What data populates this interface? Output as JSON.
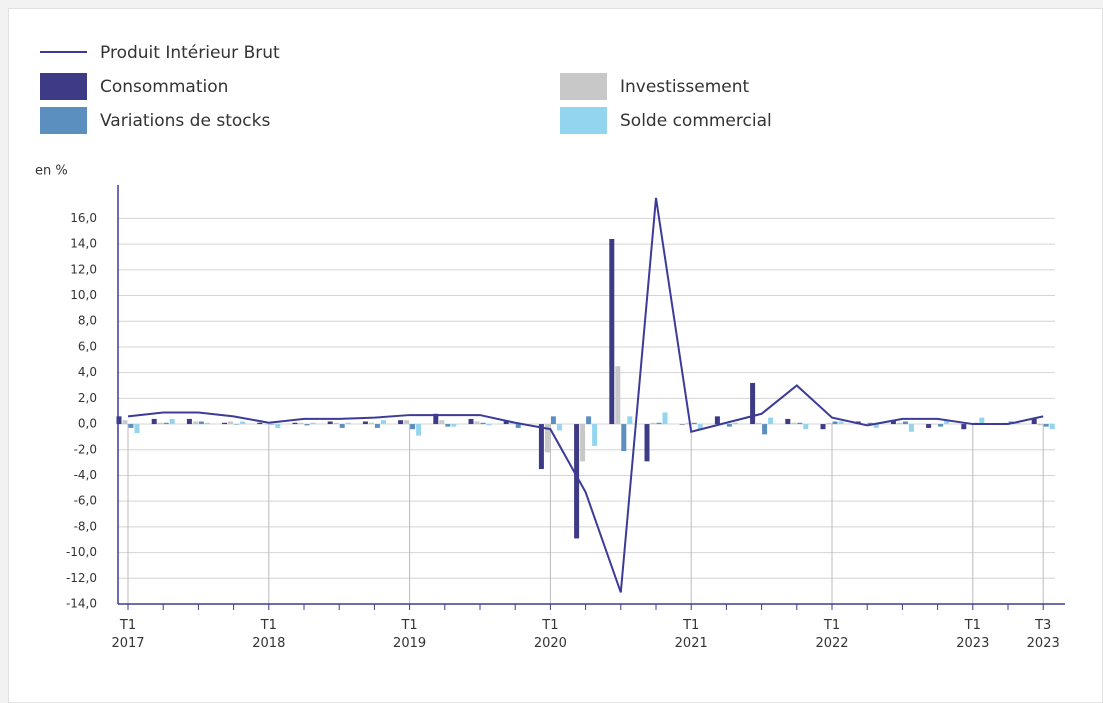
{
  "chart_data": {
    "type": "bar",
    "ylabel": "en %",
    "categories": [
      "T1 2017",
      null,
      null,
      null,
      "T1 2018",
      null,
      null,
      null,
      "T1 2019",
      null,
      null,
      null,
      "T1 2020",
      null,
      null,
      null,
      "T1 2021",
      null,
      null,
      null,
      "T1 2022",
      null,
      null,
      null,
      "T1 2023",
      null,
      "T3 2023"
    ],
    "series": [
      {
        "name": "Produit Intérieur Brut",
        "type": "line",
        "color": "#3c3b98",
        "values": [
          0.6,
          0.9,
          0.9,
          0.6,
          0.1,
          0.4,
          0.4,
          0.5,
          0.7,
          0.7,
          0.7,
          0.1,
          -0.4,
          -5.3,
          -13.1,
          17.6,
          -0.6,
          0.1,
          0.8,
          3.0,
          0.5,
          -0.1,
          0.4,
          0.4,
          0.0,
          0.0,
          0.6
        ]
      },
      {
        "name": "Consommation",
        "type": "bar",
        "color": "#3d3b85",
        "values": [
          0.6,
          0.4,
          0.4,
          0.1,
          0.1,
          0.1,
          0.2,
          0.2,
          0.3,
          0.8,
          0.4,
          0.2,
          -3.5,
          -8.9,
          14.4,
          -2.9,
          0.0,
          0.6,
          3.2,
          0.4,
          -0.4,
          0.2,
          0.3,
          -0.3,
          -0.4,
          0.0,
          0.4
        ]
      },
      {
        "name": "Investissement",
        "type": "bar",
        "color": "#c8c8c8",
        "values": [
          0.3,
          0.1,
          0.2,
          0.2,
          0.0,
          0.1,
          0.1,
          0.1,
          0.3,
          0.3,
          0.2,
          0.1,
          -2.2,
          -2.9,
          4.5,
          0.1,
          0.1,
          0.1,
          0.1,
          0.1,
          0.1,
          0.0,
          0.1,
          0.0,
          0.0,
          0.1,
          -0.1
        ]
      },
      {
        "name": "Variations de stocks",
        "type": "bar",
        "color": "#5b8fbf",
        "values": [
          -0.3,
          0.1,
          0.2,
          0.0,
          0.0,
          -0.1,
          -0.3,
          -0.3,
          -0.4,
          -0.2,
          0.1,
          -0.3,
          0.6,
          0.6,
          -2.1,
          0.1,
          0.1,
          -0.2,
          -0.8,
          0.1,
          0.2,
          0.1,
          0.2,
          -0.2,
          0.1,
          0.2,
          -0.2
        ]
      },
      {
        "name": "Solde commercial",
        "type": "bar",
        "color": "#93d5ee",
        "values": [
          -0.7,
          0.4,
          0.1,
          0.2,
          -0.3,
          0.1,
          0.1,
          0.3,
          -0.9,
          -0.2,
          -0.1,
          -0.1,
          -0.5,
          -1.7,
          0.6,
          0.9,
          -0.4,
          0.1,
          0.5,
          -0.4,
          0.2,
          -0.3,
          -0.6,
          0.3,
          0.5,
          0.2,
          -0.4
        ]
      }
    ],
    "ylim": [
      -14,
      18.6
    ],
    "yticks": [
      {
        "value": -14,
        "label": "-14,0"
      },
      {
        "value": -12,
        "label": "-12,0"
      },
      {
        "value": -10,
        "label": "-10,0"
      },
      {
        "value": -8,
        "label": "-8,0"
      },
      {
        "value": -6,
        "label": "-6,0"
      },
      {
        "value": -4,
        "label": "-4,0"
      },
      {
        "value": -2,
        "label": "-2,0"
      },
      {
        "value": 0,
        "label": "0,0"
      },
      {
        "value": 2,
        "label": "2,0"
      },
      {
        "value": 4,
        "label": "4,0"
      },
      {
        "value": 6,
        "label": "6,0"
      },
      {
        "value": 8,
        "label": "8,0"
      },
      {
        "value": 10,
        "label": "10,0"
      },
      {
        "value": 12,
        "label": "12,0"
      },
      {
        "value": 14,
        "label": "14,0"
      },
      {
        "value": 16,
        "label": "16,0"
      }
    ],
    "grid": true
  }
}
